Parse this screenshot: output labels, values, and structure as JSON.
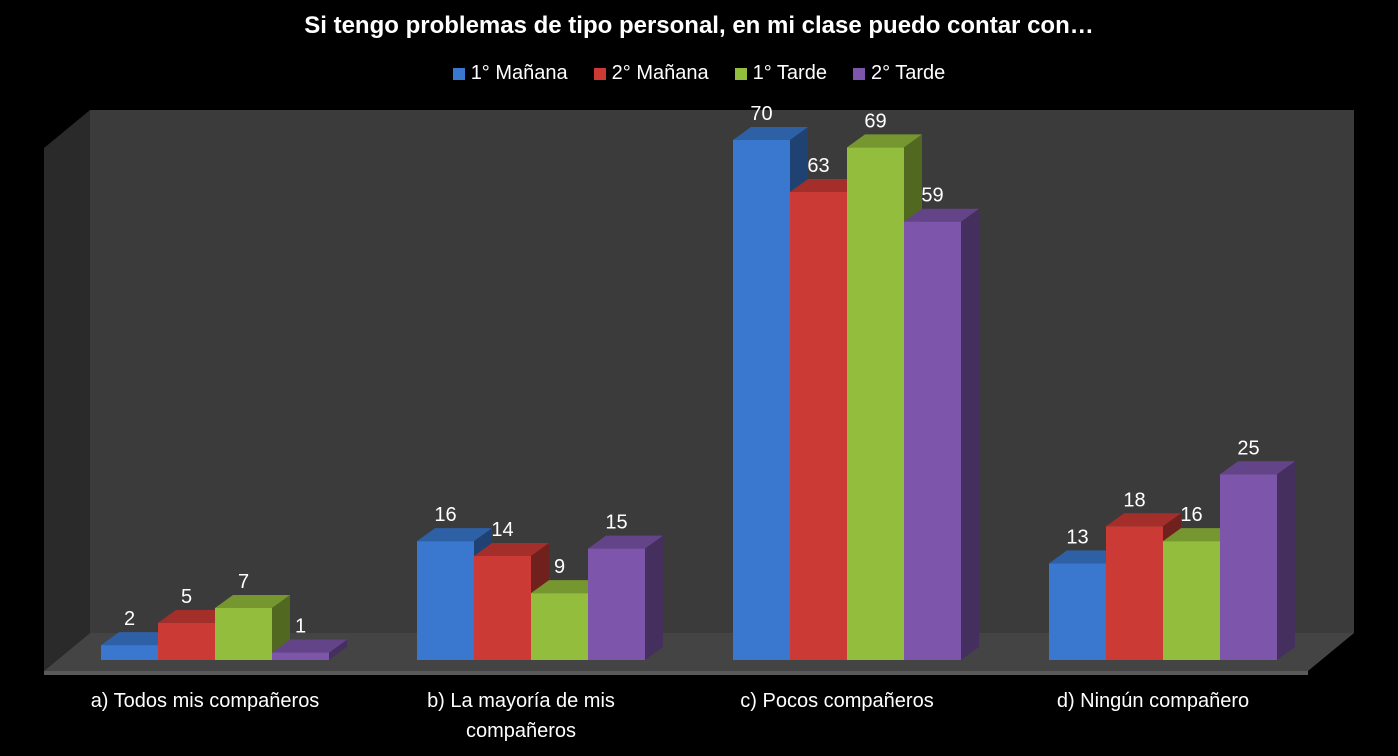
{
  "chart_data": {
    "type": "bar",
    "title": "Si tengo problemas de tipo personal, en mi clase puedo contar con…",
    "categories": [
      "a) Todos mis compañeros",
      "b) La mayoría de mis compañeros",
      "c) Pocos compañeros",
      "d) Ningún compañero"
    ],
    "series": [
      {
        "name": "1° Mañana",
        "values": [
          2,
          16,
          70,
          13
        ],
        "color": "#3a78cf"
      },
      {
        "name": "2° Mañana",
        "values": [
          5,
          14,
          63,
          18
        ],
        "color": "#cc3a35"
      },
      {
        "name": "1° Tarde",
        "values": [
          7,
          9,
          69,
          16
        ],
        "color": "#93bd3c"
      },
      {
        "name": "2° Tarde",
        "values": [
          1,
          15,
          59,
          25
        ],
        "color": "#7d55ab"
      }
    ],
    "ylim": [
      0,
      80
    ],
    "legend": "top",
    "grid": false
  }
}
